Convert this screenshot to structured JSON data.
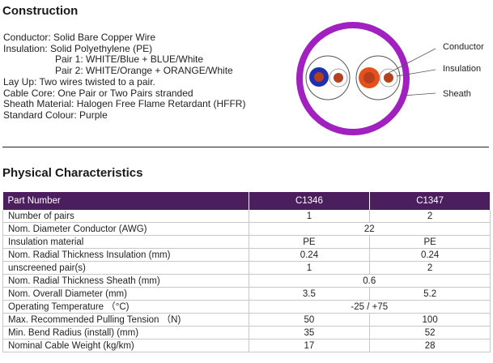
{
  "construction": {
    "title": "Construction",
    "lines": [
      "Conductor: Solid Bare Copper Wire",
      "Insulation: Solid Polyethylene (PE)",
      "Pair 1: WHITE/Blue + BLUE/White",
      "Pair 2: WHITE/Orange + ORANGE/White",
      "Lay Up: Two wires twisted to a pair.",
      "Cable Core: One Pair or Two Pairs stranded",
      "Sheath Material: Halogen Free Flame Retardant (HFFR)",
      "Standard Colour: Purple"
    ],
    "diagram": {
      "labels": {
        "conductor": "Conductor",
        "insulation": "Insulation",
        "sheath": "Sheath"
      },
      "colors": {
        "sheath": "#a020c0",
        "blue": "#1f2fb0",
        "orange": "#e8501a",
        "copper": "#b5401e",
        "pair_outline": "#555555"
      }
    }
  },
  "physical": {
    "title": "Physical Characteristics",
    "header": {
      "label": "Part Number",
      "col1": "C1346",
      "col2": "C1347"
    },
    "rows": [
      {
        "label": "Number of pairs",
        "c1": "1",
        "c2": "2"
      },
      {
        "label": "Nom. Diameter Conductor (AWG)",
        "span": "22"
      },
      {
        "label": "Insulation material",
        "c1": "PE",
        "c2": "PE"
      },
      {
        "label": "Nom. Radial Thickness Insulation (mm)",
        "c1": "0.24",
        "c2": "0.24"
      },
      {
        "label": "unscreened pair(s)",
        "c1": "1",
        "c2": "2"
      },
      {
        "label": "Nom. Radial Thickness Sheath (mm)",
        "span": "0.6"
      },
      {
        "label": "Nom. Overall Diameter (mm)",
        "c1": "3.5",
        "c2": "5.2"
      },
      {
        "label": "Operating Temperature （°C)",
        "span": "-25 / +75"
      },
      {
        "label": "Max. Recommended Pulling Tension （N)",
        "c1": "50",
        "c2": "100"
      },
      {
        "label": "Min. Bend Radius (install) (mm)",
        "c1": "35",
        "c2": "52"
      },
      {
        "label": "Nominal Cable Weight (kg/km)",
        "c1": "17",
        "c2": "28"
      }
    ],
    "colors": {
      "header_bg": "#4b1f5e",
      "header_text": "#ffffff"
    }
  }
}
